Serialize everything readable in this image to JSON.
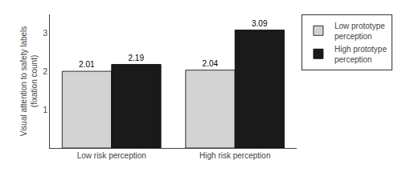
{
  "chart_data": {
    "type": "bar",
    "categories": [
      "Low risk perception",
      "High risk perception"
    ],
    "series": [
      {
        "name": "Low prototype\nperception",
        "color": "#d3d3d3",
        "values": [
          2.01,
          2.04
        ]
      },
      {
        "name": "High prototype\nperception",
        "color": "#1a1a1a",
        "values": [
          2.19,
          3.09
        ]
      }
    ],
    "ylabel": "Visual attention to safety labels\n(fixation count)",
    "ylim": [
      0,
      3.5
    ],
    "yticks": [
      1,
      2,
      3
    ],
    "data_labels": true,
    "grid": false,
    "legend": "upper right"
  }
}
